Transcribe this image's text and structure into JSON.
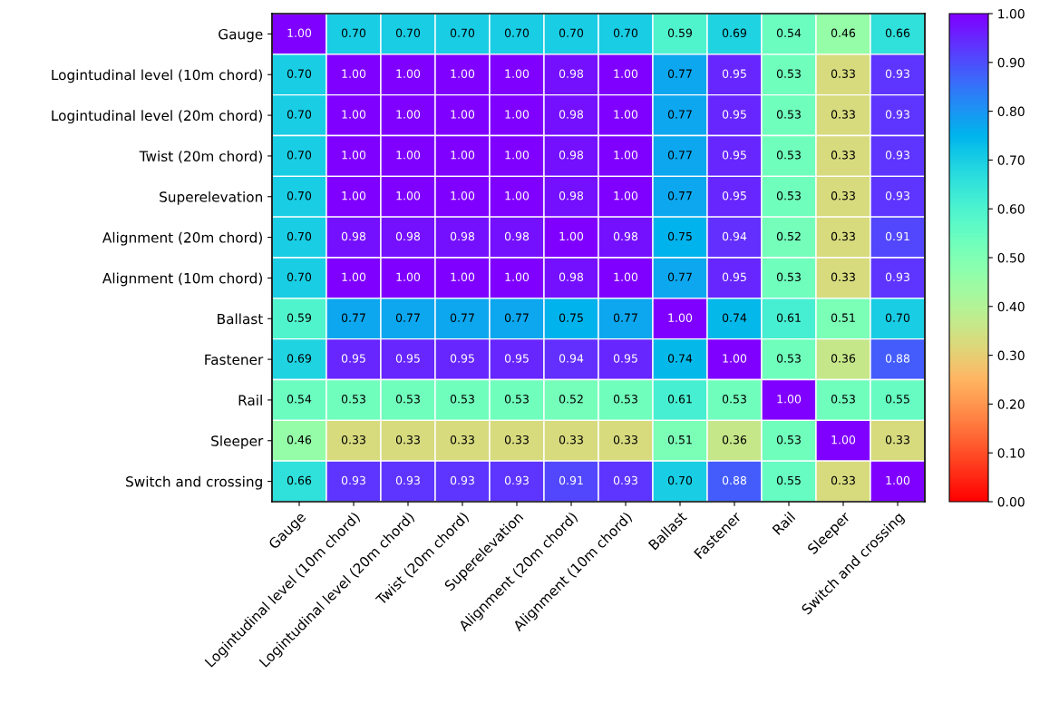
{
  "chart_data": {
    "type": "heatmap",
    "categories": [
      "Gauge",
      "Logintudinal level (10m chord)",
      "Logintudinal level (20m chord)",
      "Twist (20m chord)",
      "Superelevation",
      "Alignment (20m chord)",
      "Alignment (10m chord)",
      "Ballast",
      "Fastener",
      "Rail",
      "Sleeper",
      "Switch and crossing"
    ],
    "y_categories": [
      "Gauge",
      "Logintudinal level (10m chord)",
      "Logintudinal level (20m chord)",
      "Twist (20m chord)",
      "Superelevation",
      "Alignment (20m chord)",
      "Alignment (10m chord)",
      "Ballast",
      "Fastener",
      "Rail",
      "Sleeper",
      "Switch and crossing"
    ],
    "cells": [
      [
        1.0,
        0.7,
        0.7,
        0.7,
        0.7,
        0.7,
        0.7,
        0.59,
        0.69,
        0.54,
        0.46,
        0.66
      ],
      [
        0.7,
        1.0,
        1.0,
        1.0,
        1.0,
        0.98,
        1.0,
        0.77,
        0.95,
        0.53,
        0.33,
        0.93
      ],
      [
        0.7,
        1.0,
        1.0,
        1.0,
        1.0,
        0.98,
        1.0,
        0.77,
        0.95,
        0.53,
        0.33,
        0.93
      ],
      [
        0.7,
        1.0,
        1.0,
        1.0,
        1.0,
        0.98,
        1.0,
        0.77,
        0.95,
        0.53,
        0.33,
        0.93
      ],
      [
        0.7,
        1.0,
        1.0,
        1.0,
        1.0,
        0.98,
        1.0,
        0.77,
        0.95,
        0.53,
        0.33,
        0.93
      ],
      [
        0.7,
        0.98,
        0.98,
        0.98,
        0.98,
        1.0,
        0.98,
        0.75,
        0.94,
        0.52,
        0.33,
        0.91
      ],
      [
        0.7,
        1.0,
        1.0,
        1.0,
        1.0,
        0.98,
        1.0,
        0.77,
        0.95,
        0.53,
        0.33,
        0.93
      ],
      [
        0.59,
        0.77,
        0.77,
        0.77,
        0.77,
        0.75,
        0.77,
        1.0,
        0.74,
        0.61,
        0.51,
        0.7
      ],
      [
        0.69,
        0.95,
        0.95,
        0.95,
        0.95,
        0.94,
        0.95,
        0.74,
        1.0,
        0.53,
        0.36,
        0.88
      ],
      [
        0.54,
        0.53,
        0.53,
        0.53,
        0.53,
        0.52,
        0.53,
        0.61,
        0.53,
        1.0,
        0.53,
        0.55
      ],
      [
        0.46,
        0.33,
        0.33,
        0.33,
        0.33,
        0.33,
        0.33,
        0.51,
        0.36,
        0.53,
        1.0,
        0.33
      ],
      [
        0.66,
        0.93,
        0.93,
        0.93,
        0.93,
        0.91,
        0.93,
        0.7,
        0.88,
        0.55,
        0.33,
        1.0
      ]
    ],
    "cell_labels": [
      [
        "1.00",
        "0.70",
        "0.70",
        "0.70",
        "0.70",
        "0.70",
        "0.70",
        "0.59",
        "0.69",
        "0.54",
        "0.46",
        "0.66"
      ],
      [
        "0.70",
        "1.00",
        "1.00",
        "1.00",
        "1.00",
        "0.98",
        "1.00",
        "0.77",
        "0.95",
        "0.53",
        "0.33",
        "0.93"
      ],
      [
        "0.70",
        "1.00",
        "1.00",
        "1.00",
        "1.00",
        "0.98",
        "1.00",
        "0.77",
        "0.95",
        "0.53",
        "0.33",
        "0.93"
      ],
      [
        "0.70",
        "1.00",
        "1.00",
        "1.00",
        "1.00",
        "0.98",
        "1.00",
        "0.77",
        "0.95",
        "0.53",
        "0.33",
        "0.93"
      ],
      [
        "0.70",
        "1.00",
        "1.00",
        "1.00",
        "1.00",
        "0.98",
        "1.00",
        "0.77",
        "0.95",
        "0.53",
        "0.33",
        "0.93"
      ],
      [
        "0.70",
        "0.98",
        "0.98",
        "0.98",
        "0.98",
        "1.00",
        "0.98",
        "0.75",
        "0.94",
        "0.52",
        "0.33",
        "0.91"
      ],
      [
        "0.70",
        "1.00",
        "1.00",
        "1.00",
        "1.00",
        "0.98",
        "1.00",
        "0.77",
        "0.95",
        "0.53",
        "0.33",
        "0.93"
      ],
      [
        "0.59",
        "0.77",
        "0.77",
        "0.77",
        "0.77",
        "0.75",
        "0.77",
        "1.00",
        "0.74",
        "0.61",
        "0.51",
        "0.70"
      ],
      [
        "0.69",
        "0.95",
        "0.95",
        "0.95",
        "0.95",
        "0.94",
        "0.95",
        "0.74",
        "1.00",
        "0.53",
        "0.36",
        "0.88"
      ],
      [
        "0.54",
        "0.53",
        "0.53",
        "0.53",
        "0.53",
        "0.52",
        "0.53",
        "0.61",
        "0.53",
        "1.00",
        "0.53",
        "0.55"
      ],
      [
        "0.46",
        "0.33",
        "0.33",
        "0.33",
        "0.33",
        "0.33",
        "0.33",
        "0.51",
        "0.36",
        "0.53",
        "1.00",
        "0.33"
      ],
      [
        "0.66",
        "0.93",
        "0.93",
        "0.93",
        "0.93",
        "0.91",
        "0.93",
        "0.70",
        "0.88",
        "0.55",
        "0.33",
        "1.00"
      ]
    ],
    "data_labels": true,
    "clim": [
      0,
      1
    ],
    "cticks": [
      {
        "value": 0,
        "label": "0.00"
      },
      {
        "value": 0.1,
        "label": "0.10"
      },
      {
        "value": 0.2,
        "label": "0.20"
      },
      {
        "value": 0.3,
        "label": "0.30"
      },
      {
        "value": 0.4,
        "label": "0.40"
      },
      {
        "value": 0.5,
        "label": "0.50"
      },
      {
        "value": 0.6,
        "label": "0.60"
      },
      {
        "value": 0.7,
        "label": "0.70"
      },
      {
        "value": 0.8,
        "label": "0.80"
      },
      {
        "value": 0.9,
        "label": "0.90"
      },
      {
        "value": 1,
        "label": "1.00"
      }
    ]
  }
}
